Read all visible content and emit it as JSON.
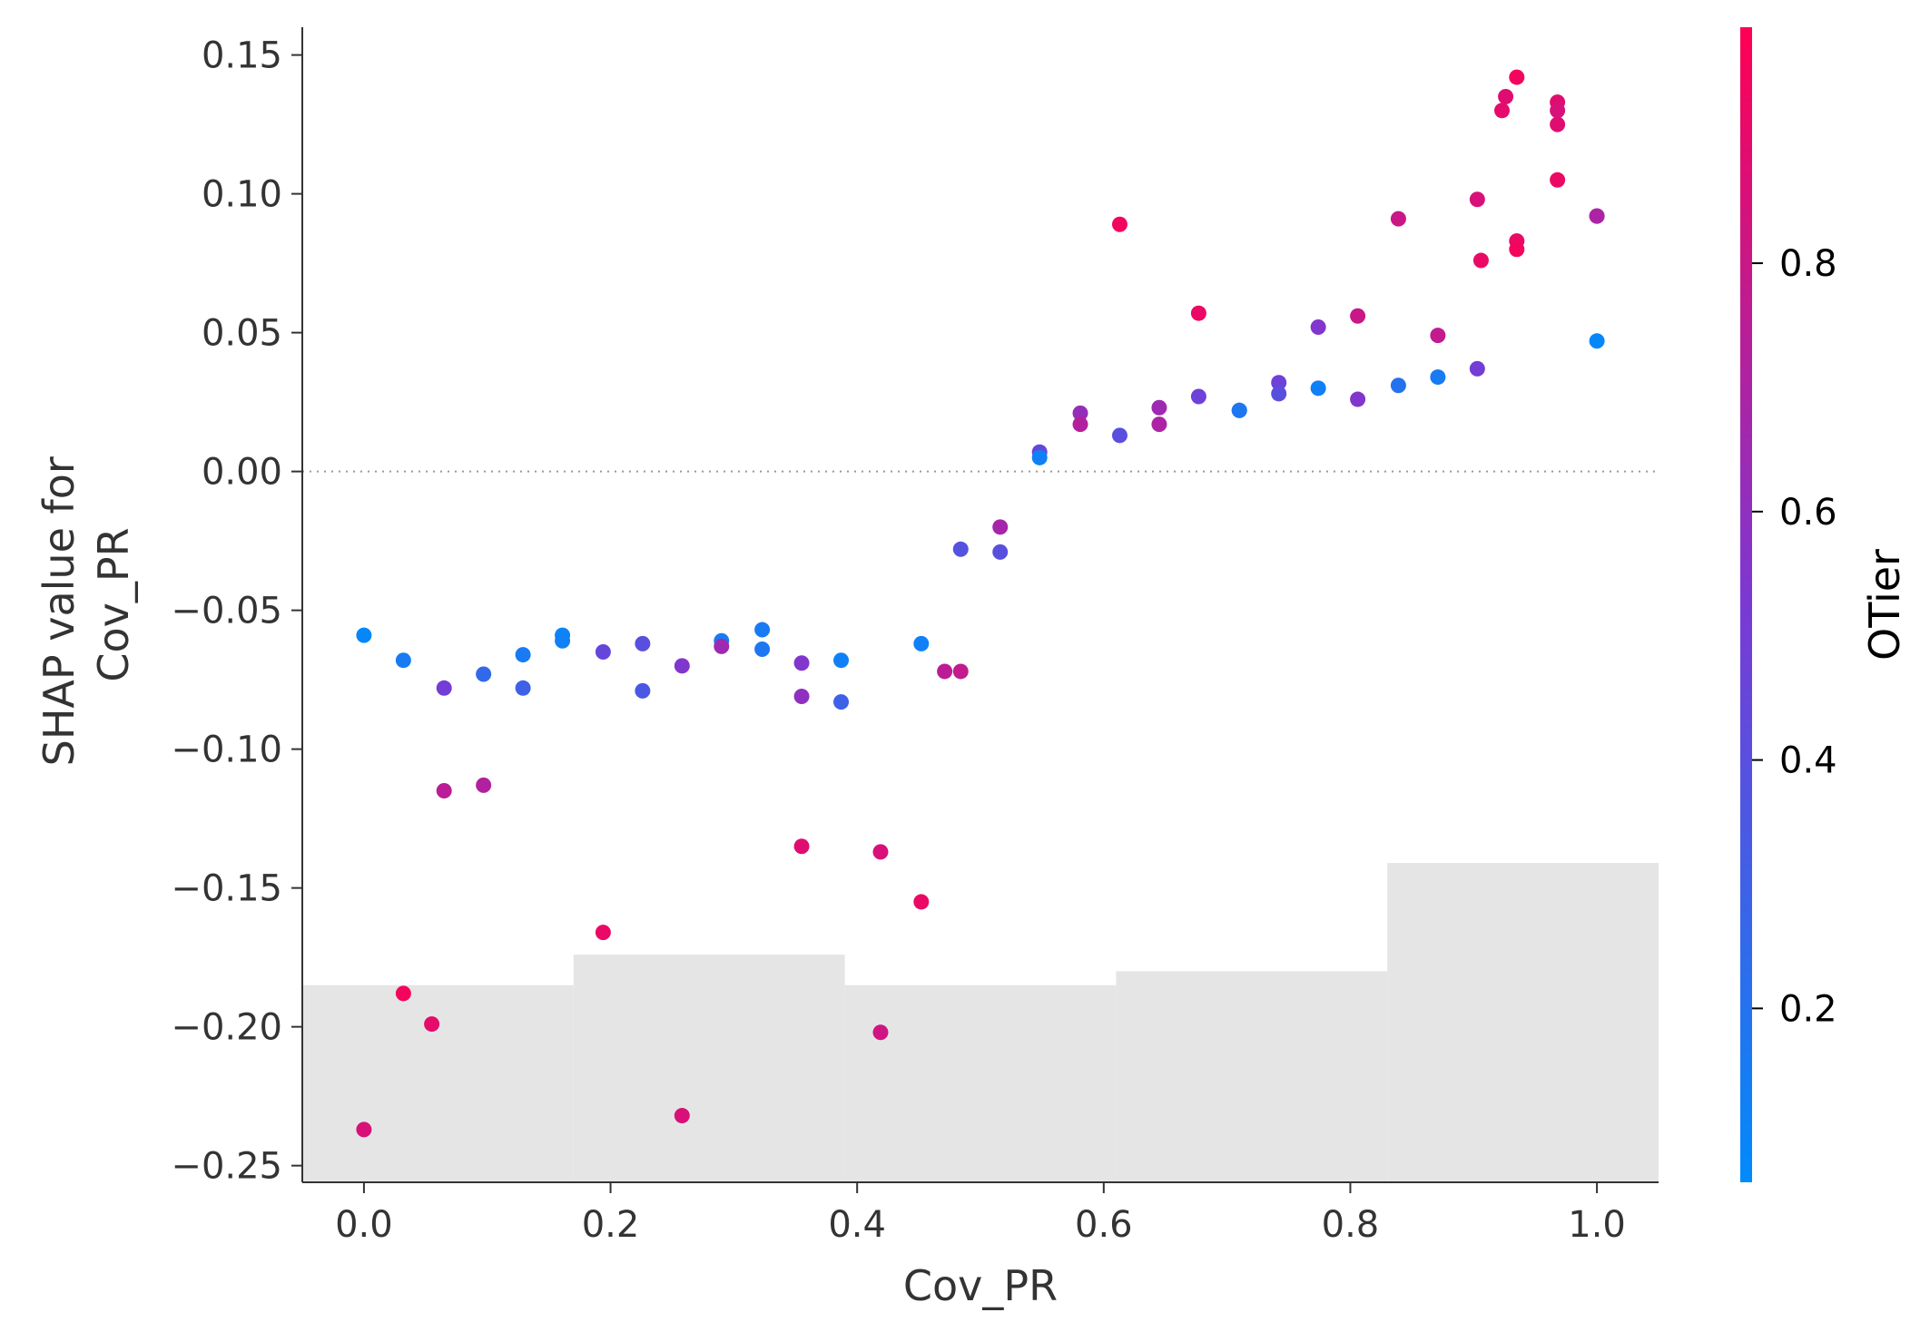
{
  "chart_data": {
    "type": "scatter",
    "title": "",
    "xlabel": "Cov_PR",
    "ylabel_lines": [
      "SHAP value for",
      "Cov_PR"
    ],
    "xlim": [
      -0.05,
      1.05
    ],
    "ylim": [
      -0.256,
      0.16
    ],
    "x_ticks": [
      0.0,
      0.2,
      0.4,
      0.6,
      0.8,
      1.0
    ],
    "x_tick_labels": [
      "0.0",
      "0.2",
      "0.4",
      "0.6",
      "0.8",
      "1.0"
    ],
    "y_ticks": [
      0.15,
      0.1,
      0.05,
      0.0,
      -0.05,
      -0.1,
      -0.15,
      -0.2,
      -0.25
    ],
    "y_tick_labels": [
      "0.15",
      "0.10",
      "0.05",
      "0.00",
      "−0.05",
      "−0.10",
      "−0.15",
      "−0.20",
      "−0.25"
    ],
    "zero_line": true,
    "grid": false,
    "histogram_background": {
      "bins": [
        {
          "x0": -0.05,
          "x1": 0.17,
          "top": -0.185
        },
        {
          "x0": 0.17,
          "x1": 0.39,
          "top": -0.174
        },
        {
          "x0": 0.39,
          "x1": 0.61,
          "top": -0.185
        },
        {
          "x0": 0.61,
          "x1": 0.83,
          "top": -0.18
        },
        {
          "x0": 0.83,
          "x1": 1.05,
          "top": -0.141
        }
      ],
      "color": "#e5e5e5"
    },
    "colorbar": {
      "label": "OTier",
      "range": [
        0.06,
        0.99
      ],
      "ticks": [
        0.2,
        0.4,
        0.6,
        0.8
      ],
      "tick_labels": [
        "0.2",
        "0.4",
        "0.6",
        "0.8"
      ],
      "low_color": "#008bfb",
      "high_color": "#ff0052"
    },
    "points": [
      {
        "x": 0.0,
        "y": -0.059,
        "c": 0.08
      },
      {
        "x": 0.0,
        "y": -0.237,
        "c": 0.85
      },
      {
        "x": 0.032,
        "y": -0.068,
        "c": 0.15
      },
      {
        "x": 0.032,
        "y": -0.188,
        "c": 0.95
      },
      {
        "x": 0.055,
        "y": -0.199,
        "c": 0.9
      },
      {
        "x": 0.065,
        "y": -0.078,
        "c": 0.5
      },
      {
        "x": 0.065,
        "y": -0.115,
        "c": 0.75
      },
      {
        "x": 0.097,
        "y": -0.073,
        "c": 0.25
      },
      {
        "x": 0.097,
        "y": -0.113,
        "c": 0.72
      },
      {
        "x": 0.129,
        "y": -0.066,
        "c": 0.15
      },
      {
        "x": 0.129,
        "y": -0.078,
        "c": 0.3
      },
      {
        "x": 0.161,
        "y": -0.059,
        "c": 0.1
      },
      {
        "x": 0.161,
        "y": -0.061,
        "c": 0.12
      },
      {
        "x": 0.194,
        "y": -0.065,
        "c": 0.45
      },
      {
        "x": 0.194,
        "y": -0.166,
        "c": 0.92
      },
      {
        "x": 0.226,
        "y": -0.062,
        "c": 0.4
      },
      {
        "x": 0.226,
        "y": -0.079,
        "c": 0.35
      },
      {
        "x": 0.258,
        "y": -0.07,
        "c": 0.55
      },
      {
        "x": 0.258,
        "y": -0.232,
        "c": 0.85
      },
      {
        "x": 0.29,
        "y": -0.061,
        "c": 0.15
      },
      {
        "x": 0.29,
        "y": -0.063,
        "c": 0.65
      },
      {
        "x": 0.323,
        "y": -0.057,
        "c": 0.15
      },
      {
        "x": 0.323,
        "y": -0.064,
        "c": 0.18
      },
      {
        "x": 0.355,
        "y": -0.069,
        "c": 0.55
      },
      {
        "x": 0.355,
        "y": -0.081,
        "c": 0.6
      },
      {
        "x": 0.355,
        "y": -0.135,
        "c": 0.88
      },
      {
        "x": 0.387,
        "y": -0.068,
        "c": 0.12
      },
      {
        "x": 0.387,
        "y": -0.083,
        "c": 0.3
      },
      {
        "x": 0.419,
        "y": -0.137,
        "c": 0.85
      },
      {
        "x": 0.419,
        "y": -0.202,
        "c": 0.82
      },
      {
        "x": 0.452,
        "y": -0.062,
        "c": 0.12
      },
      {
        "x": 0.452,
        "y": -0.155,
        "c": 0.92
      },
      {
        "x": 0.471,
        "y": -0.072,
        "c": 0.75
      },
      {
        "x": 0.484,
        "y": -0.072,
        "c": 0.78
      },
      {
        "x": 0.484,
        "y": -0.028,
        "c": 0.38
      },
      {
        "x": 0.516,
        "y": -0.02,
        "c": 0.68
      },
      {
        "x": 0.516,
        "y": -0.029,
        "c": 0.4
      },
      {
        "x": 0.548,
        "y": 0.007,
        "c": 0.45
      },
      {
        "x": 0.548,
        "y": 0.005,
        "c": 0.12
      },
      {
        "x": 0.581,
        "y": 0.021,
        "c": 0.62
      },
      {
        "x": 0.581,
        "y": 0.017,
        "c": 0.72
      },
      {
        "x": 0.613,
        "y": 0.089,
        "c": 0.95
      },
      {
        "x": 0.613,
        "y": 0.013,
        "c": 0.4
      },
      {
        "x": 0.645,
        "y": 0.023,
        "c": 0.65
      },
      {
        "x": 0.645,
        "y": 0.017,
        "c": 0.7
      },
      {
        "x": 0.677,
        "y": 0.057,
        "c": 0.92
      },
      {
        "x": 0.677,
        "y": 0.027,
        "c": 0.48
      },
      {
        "x": 0.71,
        "y": 0.022,
        "c": 0.2
      },
      {
        "x": 0.71,
        "y": 0.022,
        "c": 0.18
      },
      {
        "x": 0.742,
        "y": 0.032,
        "c": 0.48
      },
      {
        "x": 0.742,
        "y": 0.028,
        "c": 0.4
      },
      {
        "x": 0.774,
        "y": 0.052,
        "c": 0.55
      },
      {
        "x": 0.774,
        "y": 0.03,
        "c": 0.12
      },
      {
        "x": 0.806,
        "y": 0.056,
        "c": 0.8
      },
      {
        "x": 0.806,
        "y": 0.026,
        "c": 0.55
      },
      {
        "x": 0.839,
        "y": 0.091,
        "c": 0.8
      },
      {
        "x": 0.839,
        "y": 0.031,
        "c": 0.2
      },
      {
        "x": 0.871,
        "y": 0.049,
        "c": 0.78
      },
      {
        "x": 0.871,
        "y": 0.034,
        "c": 0.15
      },
      {
        "x": 0.903,
        "y": 0.098,
        "c": 0.85
      },
      {
        "x": 0.903,
        "y": 0.037,
        "c": 0.5
      },
      {
        "x": 0.906,
        "y": 0.076,
        "c": 0.92
      },
      {
        "x": 0.923,
        "y": 0.13,
        "c": 0.9
      },
      {
        "x": 0.926,
        "y": 0.135,
        "c": 0.88
      },
      {
        "x": 0.935,
        "y": 0.142,
        "c": 0.95
      },
      {
        "x": 0.935,
        "y": 0.083,
        "c": 0.92
      },
      {
        "x": 0.935,
        "y": 0.08,
        "c": 0.95
      },
      {
        "x": 0.968,
        "y": 0.133,
        "c": 0.88
      },
      {
        "x": 0.968,
        "y": 0.13,
        "c": 0.85
      },
      {
        "x": 0.968,
        "y": 0.125,
        "c": 0.88
      },
      {
        "x": 0.968,
        "y": 0.105,
        "c": 0.92
      },
      {
        "x": 1.0,
        "y": 0.092,
        "c": 0.65
      },
      {
        "x": 1.0,
        "y": 0.092,
        "c": 0.7
      },
      {
        "x": 1.0,
        "y": 0.047,
        "c": 0.08
      }
    ]
  }
}
